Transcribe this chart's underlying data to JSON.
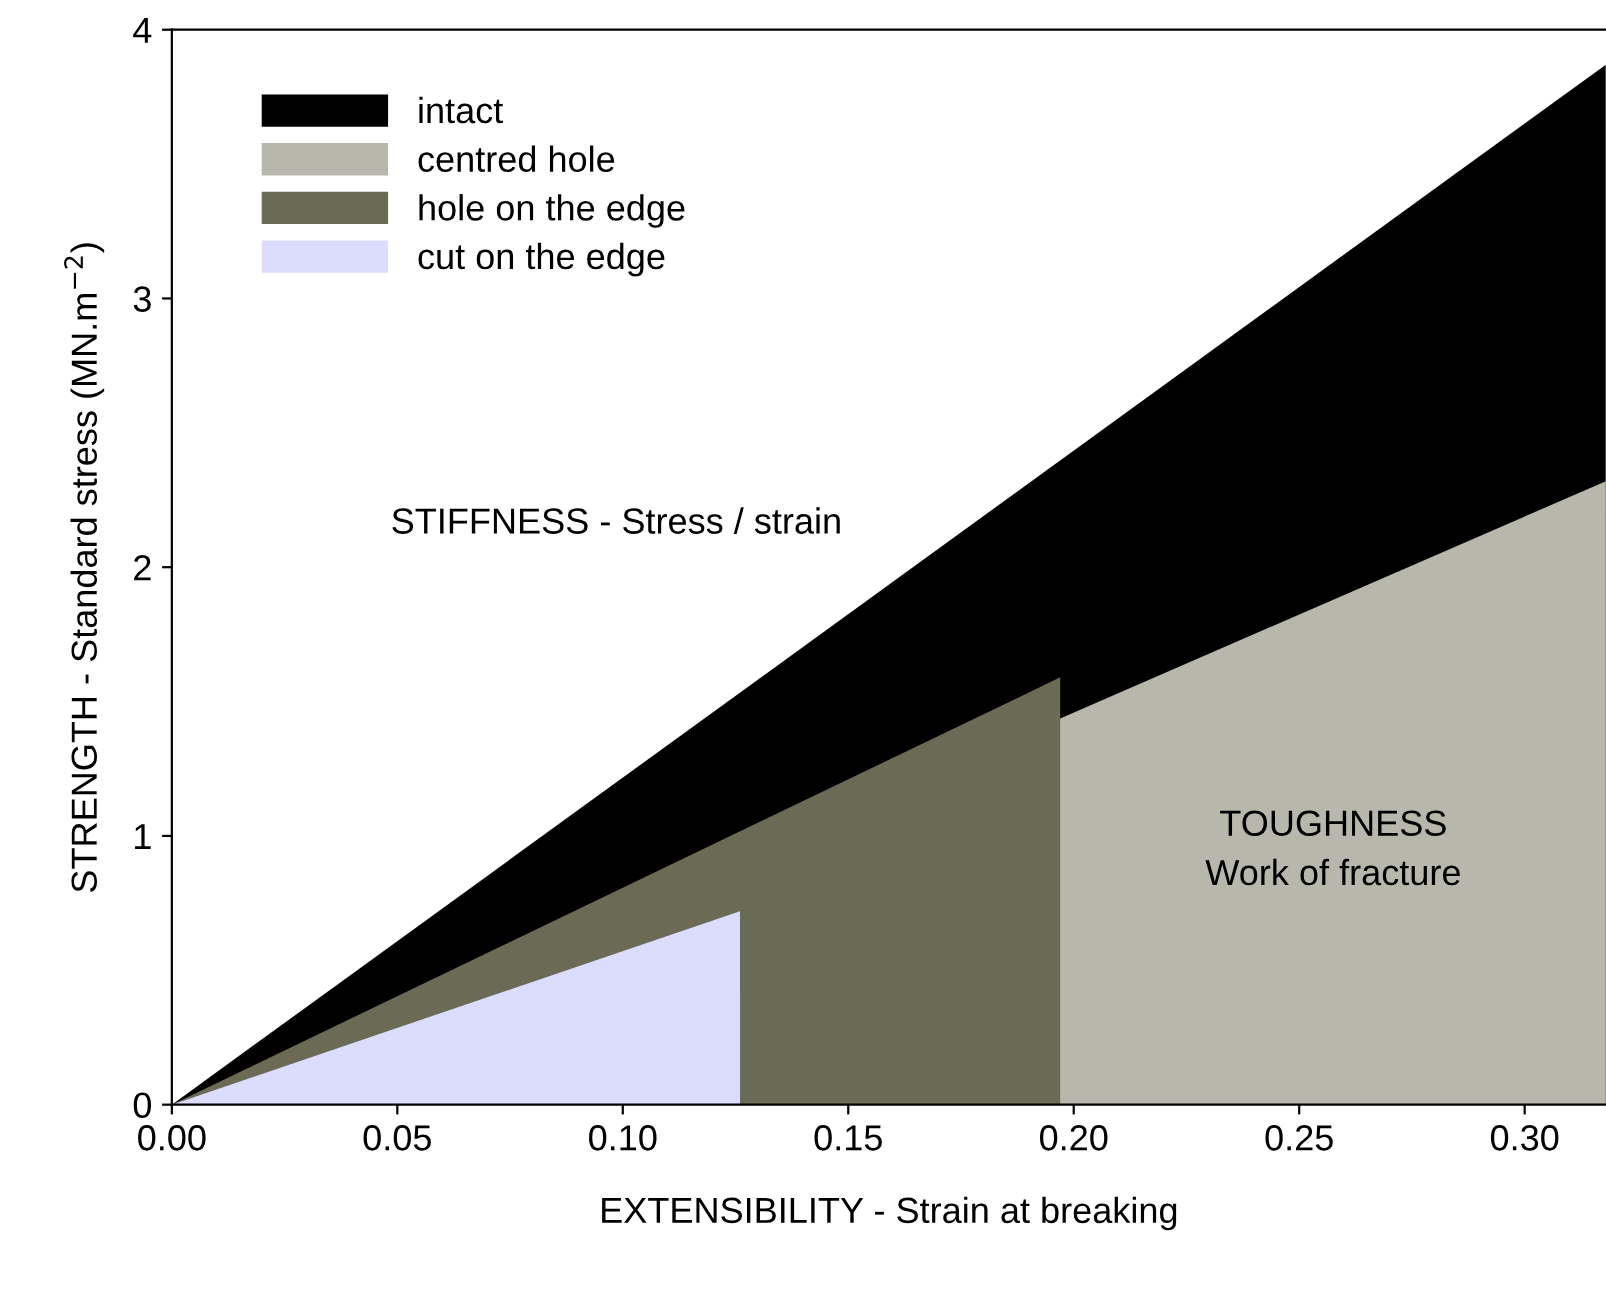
{
  "chart_data": {
    "type": "area",
    "xlabel": "EXTENSIBILITY - Strain at breaking",
    "ylabel": "STRENGTH - Standard stress (MN.m$^{−2}$)",
    "annotations": [
      "STIFFNESS - Stress / strain",
      "TOUGHNESS\nWork of fracture"
    ],
    "series": [
      {
        "name": "intact",
        "color": "#000000",
        "x": [
          0,
          0.318
        ],
        "values": [
          0,
          3.87
        ]
      },
      {
        "name": "centred hole",
        "color": "#b7b7ab",
        "x": [
          0,
          0.318
        ],
        "values": [
          0,
          2.32
        ]
      },
      {
        "name": "hole on the edge",
        "color": "#6b6b55",
        "x": [
          0,
          0.197,
          0.197
        ],
        "values": [
          0,
          1.59,
          0
        ]
      },
      {
        "name": "cut on the edge",
        "color": "#dcdcff",
        "x": [
          0,
          0.126,
          0.126
        ],
        "values": [
          0,
          0.72,
          0
        ]
      }
    ],
    "xlim": [
      0,
      0.318
    ],
    "ylim": [
      0,
      4
    ],
    "xticks": [
      {
        "value": 0,
        "label": "0.00"
      },
      0.05,
      {
        "value": 0.1,
        "label": "0.10"
      },
      0.15,
      {
        "value": 0.2,
        "label": "0.20"
      },
      0.25,
      {
        "value": 0.3,
        "label": "0.30"
      }
    ],
    "yticks": [
      0,
      1,
      2,
      3,
      4
    ],
    "legend": "top left",
    "grid": false
  }
}
